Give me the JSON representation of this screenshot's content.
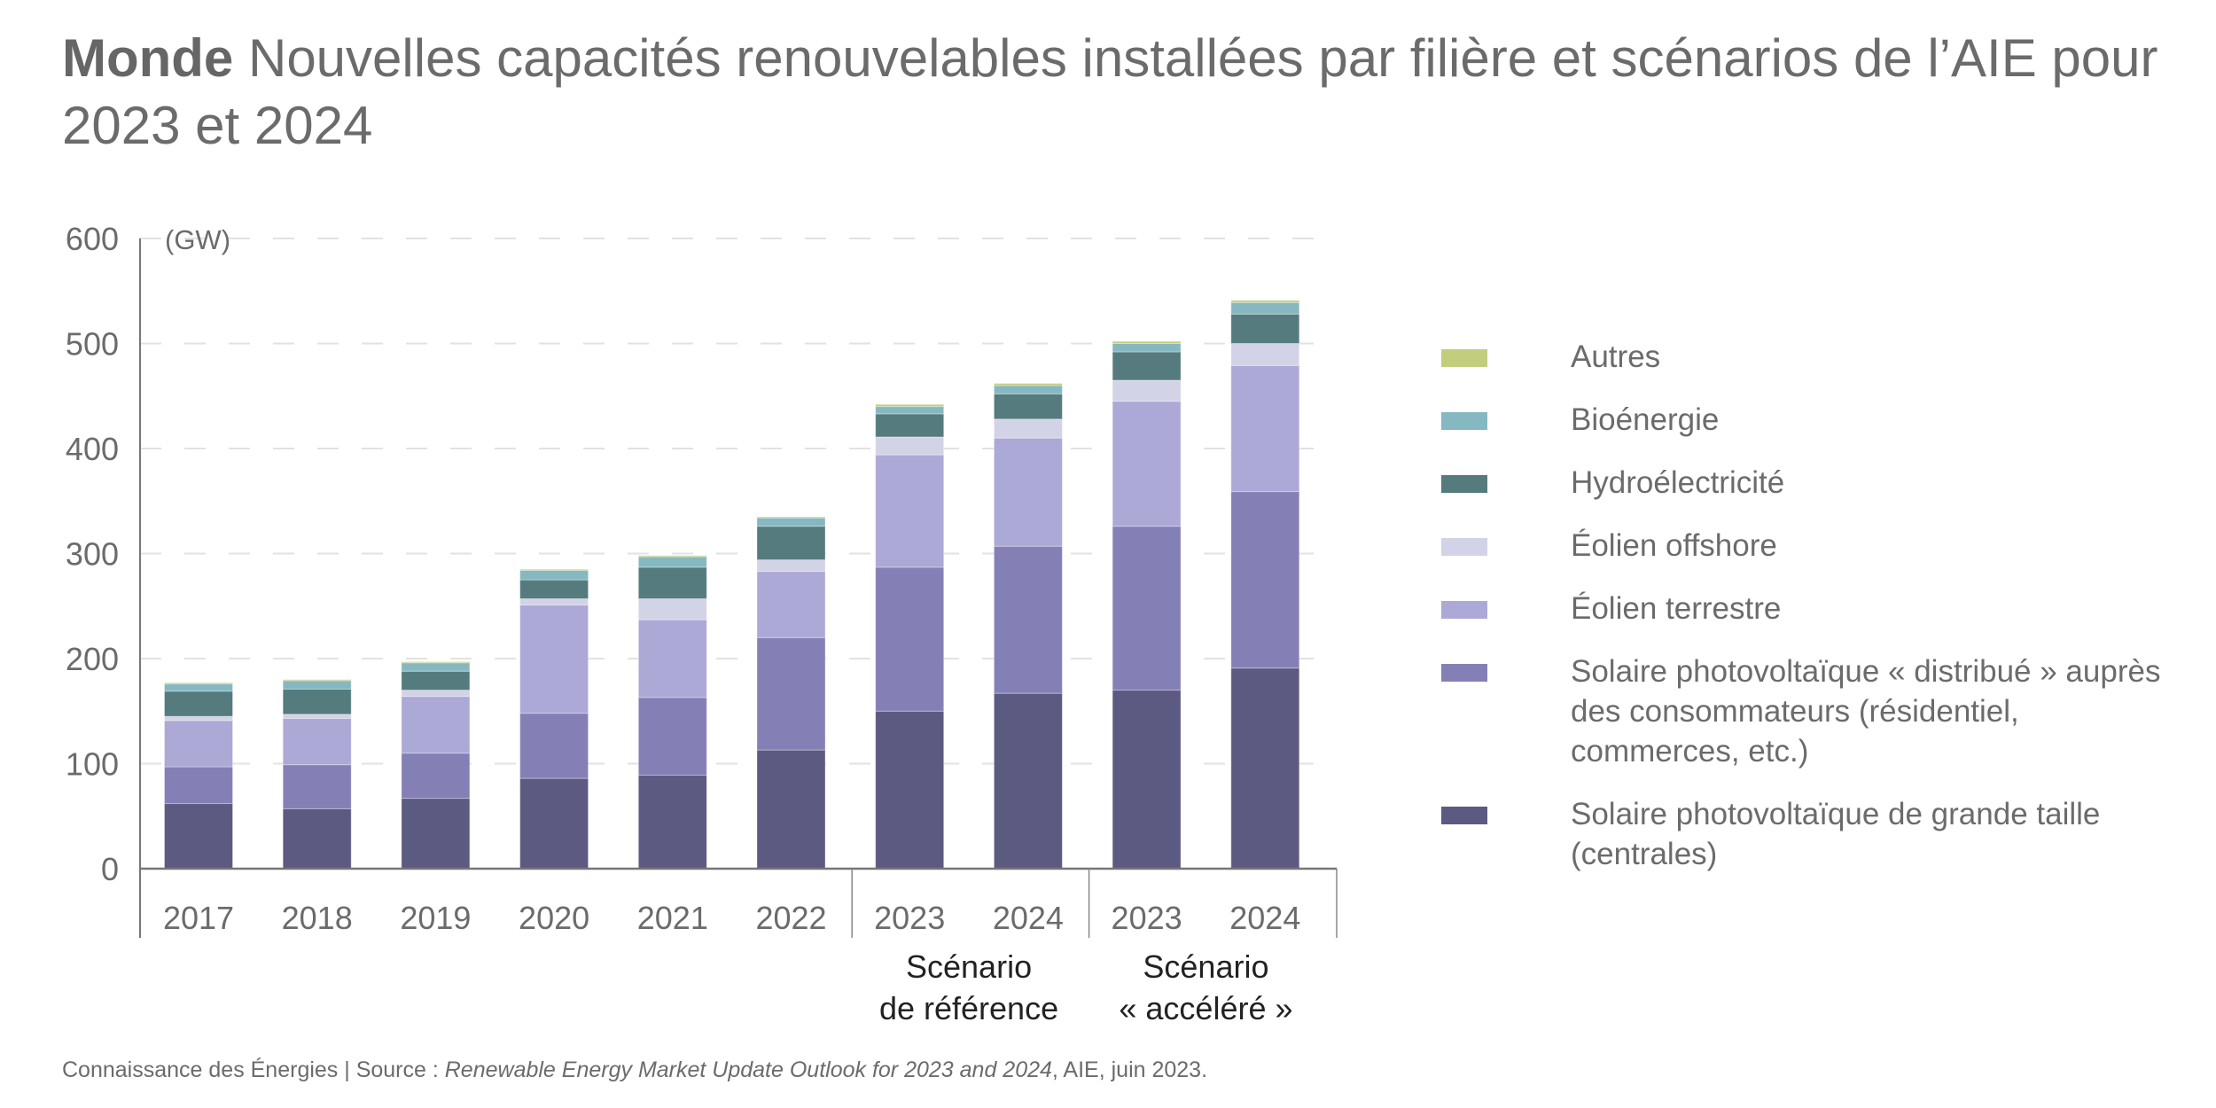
{
  "title": {
    "bold": "Monde",
    "text": " Nouvelles capacités renouvelables installées par filière et scénarios de l’AIE pour 2023 et 2024"
  },
  "footer": {
    "prefix": "Connaissance des Énergies | Source : ",
    "italic": "Renewable Energy Market Update Outlook for 2023 and 2024",
    "suffix": ", AIE, juin 2023."
  },
  "chart_data": {
    "type": "bar",
    "stacked": true,
    "title": "Monde Nouvelles capacités renouvelables installées par filière et scénarios de l’AIE pour 2023 et 2024",
    "ylabel": "(GW)",
    "xlabel": "",
    "ylim": [
      0,
      600
    ],
    "yticks": [
      0,
      100,
      200,
      300,
      400,
      500,
      600
    ],
    "grid": true,
    "legend_position": "right",
    "categories": [
      "2017",
      "2018",
      "2019",
      "2020",
      "2021",
      "2022",
      "2023",
      "2024",
      "2023",
      "2024"
    ],
    "groups": [
      {
        "label": "",
        "categories": [
          0,
          1,
          2,
          3,
          4,
          5
        ]
      },
      {
        "label": "Scénario\nde référence",
        "categories": [
          6,
          7
        ]
      },
      {
        "label": "Scénario\n« accéléré »",
        "categories": [
          8,
          9
        ]
      }
    ],
    "series": [
      {
        "name": "Solaire photovoltaïque de grande taille (centrales)",
        "color": "#5c5a80",
        "values": [
          62,
          57,
          67,
          86,
          89,
          113,
          150,
          167,
          170,
          191
        ]
      },
      {
        "name": "Solaire photovoltaïque « distribué » auprès des consommateurs (résidentiel, commerces, etc.)",
        "color": "#8480b6",
        "values": [
          35,
          42,
          43,
          62,
          74,
          107,
          137,
          140,
          156,
          168
        ]
      },
      {
        "name": "Éolien terrestre",
        "color": "#aca9d7",
        "values": [
          44,
          44,
          54,
          103,
          74,
          63,
          107,
          103,
          119,
          120
        ]
      },
      {
        "name": "Éolien offshore",
        "color": "#d3d3e8",
        "values": [
          4,
          4,
          6,
          6,
          20,
          11,
          17,
          18,
          20,
          21
        ]
      },
      {
        "name": "Hydroélectricité",
        "color": "#557b7e",
        "values": [
          24,
          24,
          18,
          18,
          30,
          32,
          22,
          24,
          27,
          28
        ]
      },
      {
        "name": "Bioénergie",
        "color": "#86b8c2",
        "values": [
          7,
          8,
          8,
          9,
          10,
          8,
          7,
          8,
          8,
          11
        ]
      },
      {
        "name": "Autres",
        "color": "#c3cd7e",
        "values": [
          1,
          1,
          1,
          1,
          1,
          1,
          2,
          2,
          2,
          2
        ]
      }
    ]
  },
  "legend": [
    {
      "label": "Autres",
      "color": "#c3cd7e"
    },
    {
      "label": "Bioénergie",
      "color": "#86b8c2"
    },
    {
      "label": "Hydroélectricité",
      "color": "#557b7e"
    },
    {
      "label": "Éolien offshore",
      "color": "#d3d3e8"
    },
    {
      "label": "Éolien terrestre",
      "color": "#aca9d7"
    },
    {
      "label": "Solaire photovoltaïque « distribué » auprès des consommateurs (résidentiel, commerces, etc.)",
      "color": "#8480b6"
    },
    {
      "label": "Solaire photovoltaïque de grande taille (centrales)",
      "color": "#5c5a80"
    }
  ]
}
